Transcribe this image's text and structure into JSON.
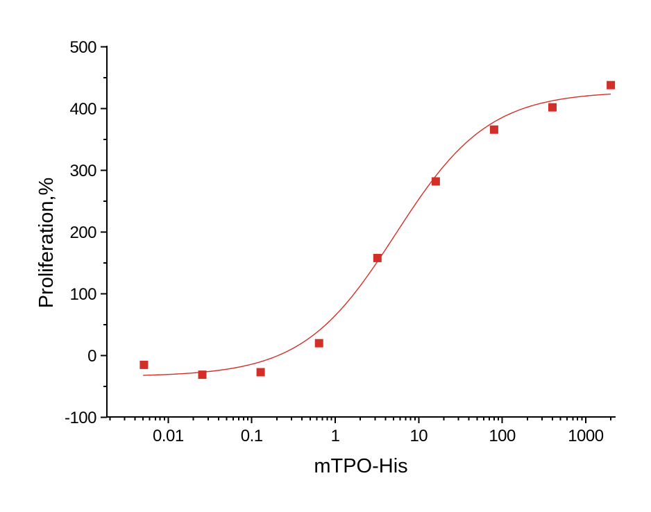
{
  "figure": {
    "background": "#ffffff",
    "axis_color": "#000000",
    "accent_red": "#d22f28"
  },
  "chart_data": {
    "type": "scatter",
    "title": "",
    "xlabel": "mTPO-His",
    "ylabel": "Proliferation,%",
    "x_scale": "log",
    "xlim": [
      0.002,
      2200
    ],
    "ylim": [
      -100,
      500
    ],
    "x_major_ticks": [
      0.01,
      0.1,
      1,
      10,
      100,
      1000
    ],
    "x_tick_labels": [
      "0.01",
      "0.1",
      "1",
      "10",
      "100",
      "1000"
    ],
    "y_major_ticks": [
      -100,
      0,
      100,
      200,
      300,
      400,
      500
    ],
    "y_tick_labels": [
      "-100",
      "0",
      "100",
      "200",
      "300",
      "400",
      "500"
    ],
    "y_minor_ticks": [
      -50,
      50,
      150,
      250,
      350,
      450
    ],
    "grid": false,
    "legend": "none",
    "series": [
      {
        "name": "mTPO-His",
        "marker": "square",
        "marker_size_px": 12,
        "marker_color": "#d22f28",
        "x": [
          0.00512,
          0.0256,
          0.128,
          0.64,
          3.2,
          16,
          80,
          400,
          2000
        ],
        "y": [
          -15,
          -31,
          -27,
          20,
          158,
          282,
          366,
          402,
          438
        ]
      }
    ],
    "fit_curve": {
      "model": "4PL",
      "bottom": -34,
      "top": 428,
      "ec50": 5.3,
      "hill": 0.78,
      "x_start": 0.005,
      "x_end": 2000,
      "color": "#d22f28"
    }
  }
}
